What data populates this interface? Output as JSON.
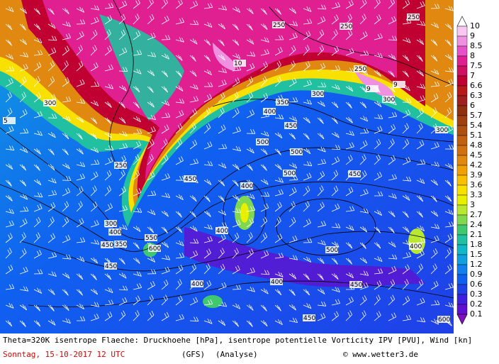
{
  "map": {
    "footer_line1": "Theta=320K isentrope Flaeche: Druckhoehe [hPa], isentrope potentielle Vorticity IPV [PVU], Wind [kn]",
    "date": "Sonntag, 15-10-2017  12 UTC",
    "model": "(GFS)",
    "run": "(Analyse)",
    "copyright": "© www.wetter3.de",
    "contour_labels": [
      "250",
      "250",
      "250",
      "250",
      "300",
      "300",
      "300",
      "350",
      "400",
      "450",
      "500",
      "500",
      "450",
      "400",
      "400",
      "450",
      "500",
      "550",
      "600",
      "450",
      "400",
      "400",
      "450",
      "450",
      "600",
      "10",
      "9",
      "9",
      "5",
      "300",
      "350",
      "400",
      "450",
      "250",
      "300",
      "500",
      "400"
    ]
  },
  "legend": {
    "levels": [
      10,
      9,
      8.5,
      8,
      7.5,
      7,
      6.6,
      6.3,
      6,
      5.7,
      5.4,
      5.1,
      4.8,
      4.5,
      4.2,
      3.9,
      3.6,
      3.3,
      3,
      2.7,
      2.4,
      2.1,
      1.8,
      1.5,
      1.2,
      0.9,
      0.6,
      0.3,
      0.2,
      0.1
    ],
    "over_color": "#ffffff",
    "under_color": "#8010c0",
    "colors": [
      "#f8c8f0",
      "#f090e0",
      "#e850c8",
      "#e02090",
      "#d01060",
      "#c00030",
      "#b81818",
      "#a02020",
      "#903010",
      "#a04010",
      "#b05010",
      "#c06010",
      "#d07010",
      "#e08810",
      "#f0a000",
      "#f8c000",
      "#f8e000",
      "#e8f000",
      "#b8e830",
      "#80d850",
      "#40c870",
      "#20c0a0",
      "#10b8c8",
      "#10a0e0",
      "#1080f0",
      "#1060f0",
      "#2040e8",
      "#4020e0",
      "#6010d0"
    ]
  }
}
